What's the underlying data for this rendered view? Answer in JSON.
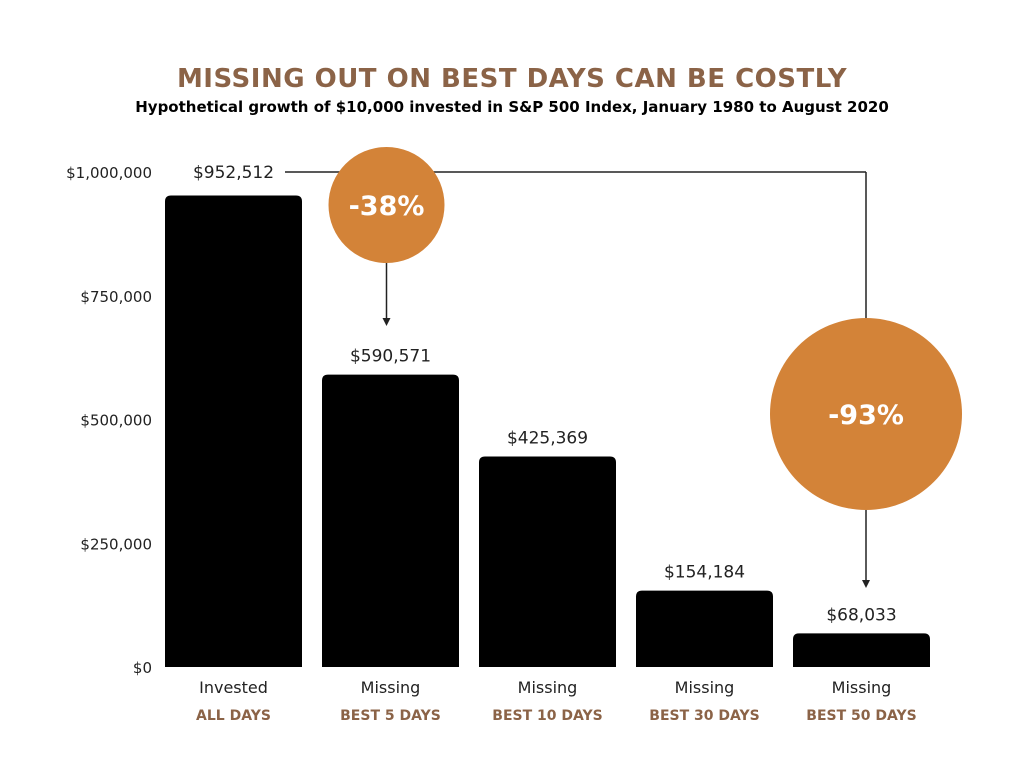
{
  "colors": {
    "title": "#8b6347",
    "bar": "#000000",
    "callout": "#d38338",
    "connector": "#222222"
  },
  "chart_data": {
    "type": "bar",
    "title": "MISSING OUT ON BEST DAYS CAN BE COSTLY",
    "subtitle": "Hypothetical growth of $10,000 invested in S&P 500 Index, January 1980 to August 2020",
    "ylim": [
      0,
      1000000
    ],
    "y_ticks": [
      0,
      250000,
      500000,
      750000,
      1000000
    ],
    "y_tick_labels": [
      "$0",
      "$250,000",
      "$500,000",
      "$750,000",
      "$1,000,000"
    ],
    "grid": false,
    "categories": [
      {
        "main": "Invested",
        "sub": "ALL DAYS"
      },
      {
        "main": "Missing",
        "sub": "BEST 5 DAYS"
      },
      {
        "main": "Missing",
        "sub": "BEST 10 DAYS"
      },
      {
        "main": "Missing",
        "sub": "BEST 30 DAYS"
      },
      {
        "main": "Missing",
        "sub": "BEST 50 DAYS"
      }
    ],
    "values": [
      952512,
      590571,
      425369,
      154184,
      68033
    ],
    "value_labels": [
      "$952,512",
      "$590,571",
      "$425,369",
      "$154,184",
      "$68,033"
    ],
    "callouts": [
      {
        "text": "-38%",
        "from_index": 0,
        "to_index": 1
      },
      {
        "text": "-93%",
        "from_index": 0,
        "to_index": 4
      }
    ]
  }
}
